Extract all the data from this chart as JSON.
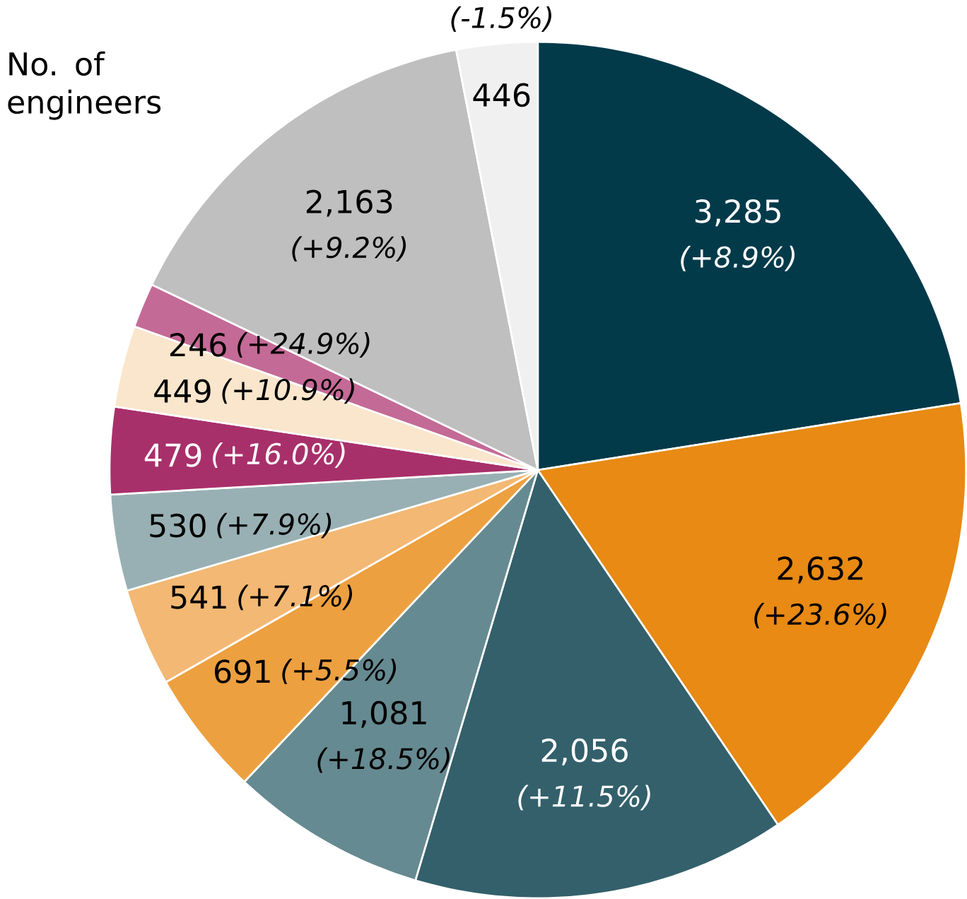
{
  "chart_data": {
    "type": "pie",
    "title": "No. of engineers",
    "categories": [
      null,
      null,
      null,
      null,
      null,
      null,
      null,
      null,
      null,
      null,
      null,
      null
    ],
    "values": [
      3285,
      2632,
      2056,
      1081,
      691,
      541,
      530,
      479,
      449,
      246,
      2163,
      446
    ],
    "colors": [
      "#023a4a",
      "#e88a14",
      "#33606b",
      "#668a91",
      "#eda040",
      "#f3b873",
      "#98b0b4",
      "#a8306a",
      "#fae6cc",
      "#c46a96",
      "#bfbfbf",
      "#f0f0f0"
    ],
    "value_labels": [
      "3,285",
      "2,632",
      "2,056",
      "1,081",
      "691",
      "541",
      "530",
      "479",
      "449",
      "246",
      "2,163",
      "446"
    ],
    "annotations": [
      "(+8.9%)",
      "(+23.6%)",
      "(+11.5%)",
      "(+18.5%)",
      "(+5.5%)",
      "(+7.1%)",
      "(+7.9%)",
      "(+16.0%)",
      "(+10.9%)",
      "(+24.9%)",
      "(+9.2%)",
      "(-1.5%)"
    ]
  }
}
